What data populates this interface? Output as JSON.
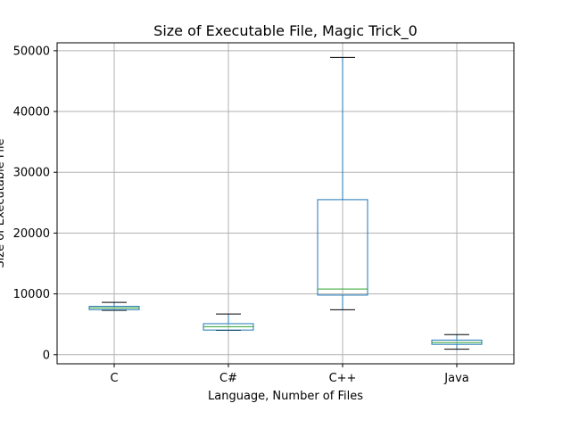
{
  "chart_data": {
    "type": "box",
    "title": "Size of Executable File, Magic Trick_0",
    "xlabel": "Language, Number of Files",
    "ylabel": "Size of Executable File",
    "categories": [
      "C",
      "C#",
      "C++",
      "Java"
    ],
    "ylim": [
      -1500,
      51300
    ],
    "yticks": [
      0,
      10000,
      20000,
      30000,
      40000,
      50000
    ],
    "yticklabels": [
      "0",
      "10000",
      "20000",
      "30000",
      "40000",
      "50000"
    ],
    "grid": true,
    "legend": "none",
    "boxes": [
      {
        "label": "C",
        "whisker_low": 7300,
        "q1": 7400,
        "median": 7700,
        "q3": 7950,
        "whisker_high": 8600
      },
      {
        "label": "C#",
        "whisker_low": 4000,
        "q1": 4050,
        "median": 4600,
        "q3": 5100,
        "whisker_high": 6700
      },
      {
        "label": "C++",
        "whisker_low": 7400,
        "q1": 9800,
        "median": 10800,
        "q3": 25500,
        "whisker_high": 48900
      },
      {
        "label": "Java",
        "whisker_low": 900,
        "q1": 1700,
        "median": 2000,
        "q3": 2400,
        "whisker_high": 3300
      }
    ],
    "colors": {
      "box": "#1f77b4",
      "median": "#2ca02c",
      "whisker": "#1f77b4",
      "cap": "#000000",
      "grid": "#b0b0b0"
    }
  }
}
